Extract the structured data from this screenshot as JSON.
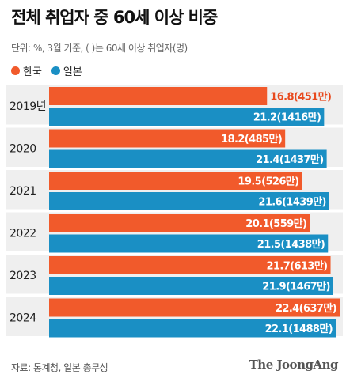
{
  "title": "전체 취업자 중 60세 이상 비중",
  "subtitle": "단위: %, 3월 기준, ( )는 60세 이상 취업자(명)",
  "source": "자료: 통계청, 일본 총무성",
  "brand": "The JoongAng",
  "colors": {
    "korea": "#f15a2b",
    "japan": "#1a8fc4",
    "label_korea": "#e8491d",
    "label_japan": "#1a7fb3"
  },
  "legend": [
    {
      "name": "한국",
      "color": "#f15a2b"
    },
    {
      "name": "일본",
      "color": "#1a8fc4"
    }
  ],
  "chart_data": {
    "type": "bar",
    "orientation": "horizontal",
    "categories": [
      "2019년",
      "2020",
      "2021",
      "2022",
      "2023",
      "2024"
    ],
    "series": [
      {
        "name": "한국",
        "values": [
          16.8,
          18.2,
          19.5,
          20.1,
          21.7,
          22.4
        ],
        "labels": [
          "16.8(451만)",
          "18.2(485만)",
          "19.5(526만)",
          "20.1(559만)",
          "21.7(613만)",
          "22.4(637만)"
        ]
      },
      {
        "name": "일본",
        "values": [
          21.2,
          21.4,
          21.6,
          21.5,
          21.9,
          22.1
        ],
        "labels": [
          "21.2(1416만)",
          "21.4(1437만)",
          "21.6(1439만)",
          "21.5(1438만)",
          "21.9(1467만)",
          "22.1(1488만)"
        ]
      }
    ],
    "grid": false,
    "legend_position": "top-left"
  }
}
